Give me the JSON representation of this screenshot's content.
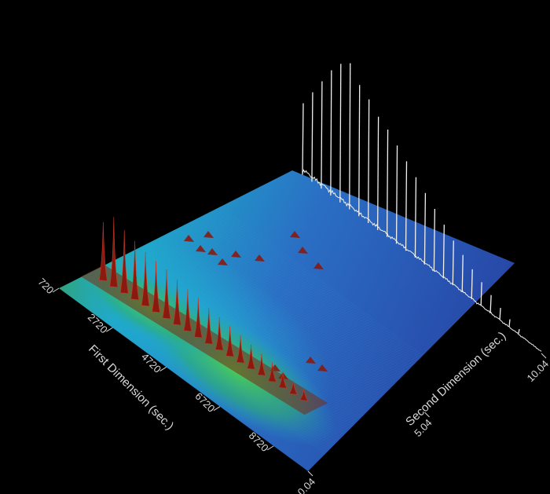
{
  "chart_data": {
    "type": "surface-3d",
    "x_axis": {
      "label": "First Dimension (sec.)",
      "ticks": [
        "720",
        "2720",
        "4720",
        "6720",
        "8720"
      ],
      "range": [
        720,
        10000
      ]
    },
    "y_axis": {
      "label": "Second Dimension (sec.)",
      "ticks": [
        "0.04",
        "5.04",
        "10.04"
      ],
      "range": [
        0.04,
        10.04
      ]
    },
    "peak_series": {
      "name": "",
      "x": [
        1100,
        1450,
        1800,
        2150,
        2500,
        2850,
        3200,
        3550,
        3900,
        4250,
        4600,
        4950,
        5300,
        5650,
        6000,
        6350,
        6700,
        7050,
        7400,
        7750
      ],
      "y": [
        1.5,
        1.55,
        1.6,
        1.65,
        1.7,
        1.75,
        1.8,
        1.85,
        1.9,
        1.95,
        2.0,
        2.05,
        2.1,
        2.15,
        2.2,
        2.25,
        2.3,
        2.35,
        2.4,
        2.45
      ],
      "intensity": [
        0.6,
        0.72,
        0.65,
        0.6,
        0.55,
        0.52,
        0.5,
        0.46,
        0.42,
        0.4,
        0.36,
        0.33,
        0.3,
        0.27,
        0.24,
        0.21,
        0.18,
        0.15,
        0.12,
        0.1
      ]
    },
    "projection_series": {
      "name": "",
      "x": [
        1100,
        1450,
        1800,
        2150,
        2500,
        2850,
        3200,
        3550,
        3900,
        4250,
        4600,
        4950,
        5300,
        5650,
        6000,
        6350,
        6700,
        7050,
        7400,
        7750,
        8100,
        8450,
        8800,
        9150
      ],
      "intensity": [
        0.5,
        0.62,
        0.74,
        0.86,
        0.95,
        1.0,
        0.9,
        0.85,
        0.78,
        0.74,
        0.68,
        0.62,
        0.56,
        0.5,
        0.44,
        0.38,
        0.32,
        0.27,
        0.22,
        0.18,
        0.14,
        0.1,
        0.07,
        0.05
      ]
    },
    "colors": {
      "background": "#000000",
      "surface_low": "#2a4fb0",
      "surface_mid": "#1aa6c8",
      "surface_high": "#3dbf4a",
      "peak": "#8a1a10",
      "projection": "#f0f0f0"
    }
  }
}
